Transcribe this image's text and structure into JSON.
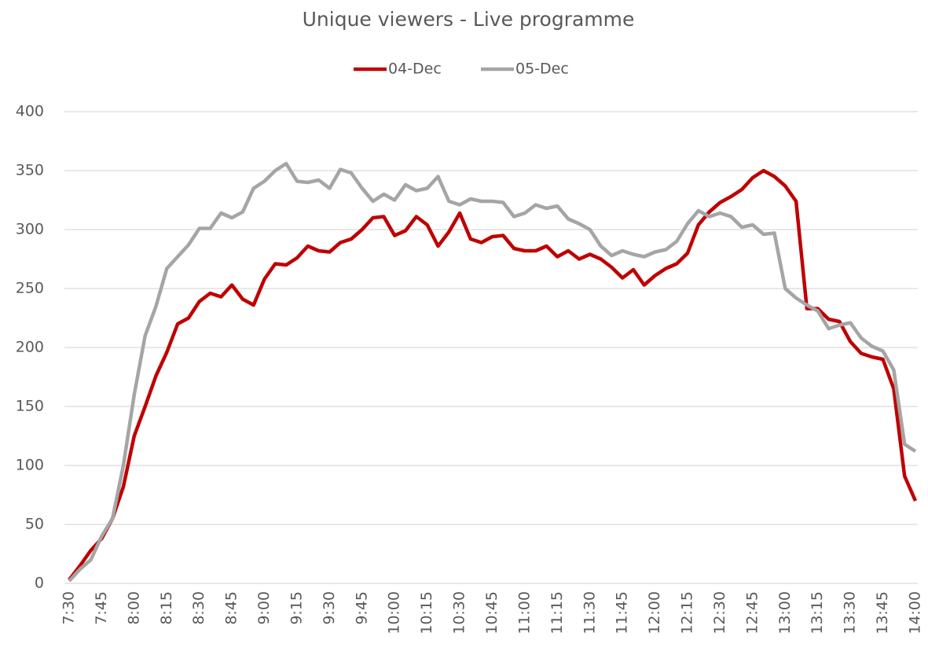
{
  "chart_data": {
    "type": "line",
    "title": "Unique viewers - Live programme",
    "categories": [
      "7:30",
      null,
      null,
      "7:45",
      null,
      null,
      "8:00",
      null,
      null,
      "8:15",
      null,
      null,
      "8:30",
      null,
      null,
      "8:45",
      null,
      null,
      "9:00",
      null,
      null,
      "9:15",
      null,
      null,
      "9:30",
      null,
      null,
      "9:45",
      null,
      null,
      "10:00",
      null,
      null,
      "10:15",
      null,
      null,
      "10:30",
      null,
      null,
      "10:45",
      null,
      null,
      "11:00",
      null,
      null,
      "11:15",
      null,
      null,
      "11:30",
      null,
      null,
      "11:45",
      null,
      null,
      "12:00",
      null,
      null,
      "12:15",
      null,
      null,
      "12:30",
      null,
      null,
      "12:45",
      null,
      null,
      "13:00",
      null,
      null,
      "13:15",
      null,
      null,
      "13:30",
      null,
      null,
      "13:45",
      null,
      null,
      "14:00"
    ],
    "series": [
      {
        "name": "04-Dec",
        "color": "#c00000",
        "values": [
          3,
          15,
          28,
          38,
          55,
          82,
          125,
          150,
          176,
          196,
          220,
          225,
          239,
          246,
          243,
          253,
          241,
          236,
          258,
          271,
          270,
          276,
          286,
          282,
          281,
          289,
          292,
          300,
          310,
          311,
          295,
          299,
          311,
          304,
          286,
          298,
          314,
          292,
          289,
          294,
          295,
          284,
          282,
          282,
          286,
          277,
          282,
          275,
          279,
          275,
          268,
          259,
          266,
          253,
          261,
          267,
          271,
          280,
          304,
          315,
          323,
          328,
          334,
          344,
          350,
          345,
          337,
          324,
          233,
          233,
          224,
          222,
          205,
          195,
          192,
          190,
          165,
          91,
          70
        ]
      },
      {
        "name": "05-Dec",
        "color": "#a5a5a5",
        "values": [
          2,
          12,
          20,
          40,
          55,
          100,
          160,
          210,
          235,
          267,
          277,
          287,
          301,
          301,
          314,
          310,
          315,
          335,
          341,
          350,
          356,
          341,
          340,
          342,
          335,
          351,
          348,
          335,
          324,
          330,
          325,
          338,
          333,
          335,
          345,
          324,
          321,
          326,
          324,
          324,
          323,
          311,
          314,
          321,
          318,
          320,
          309,
          305,
          300,
          286,
          278,
          282,
          279,
          277,
          281,
          283,
          290,
          305,
          316,
          311,
          314,
          311,
          302,
          304,
          296,
          297,
          250,
          242,
          236,
          231,
          216,
          219,
          221,
          208,
          201,
          197,
          181,
          118,
          112
        ]
      }
    ],
    "ylim": [
      0,
      400
    ],
    "yticks": [
      0,
      50,
      100,
      150,
      200,
      250,
      300,
      350,
      400
    ],
    "grid": true,
    "legend": "top"
  }
}
